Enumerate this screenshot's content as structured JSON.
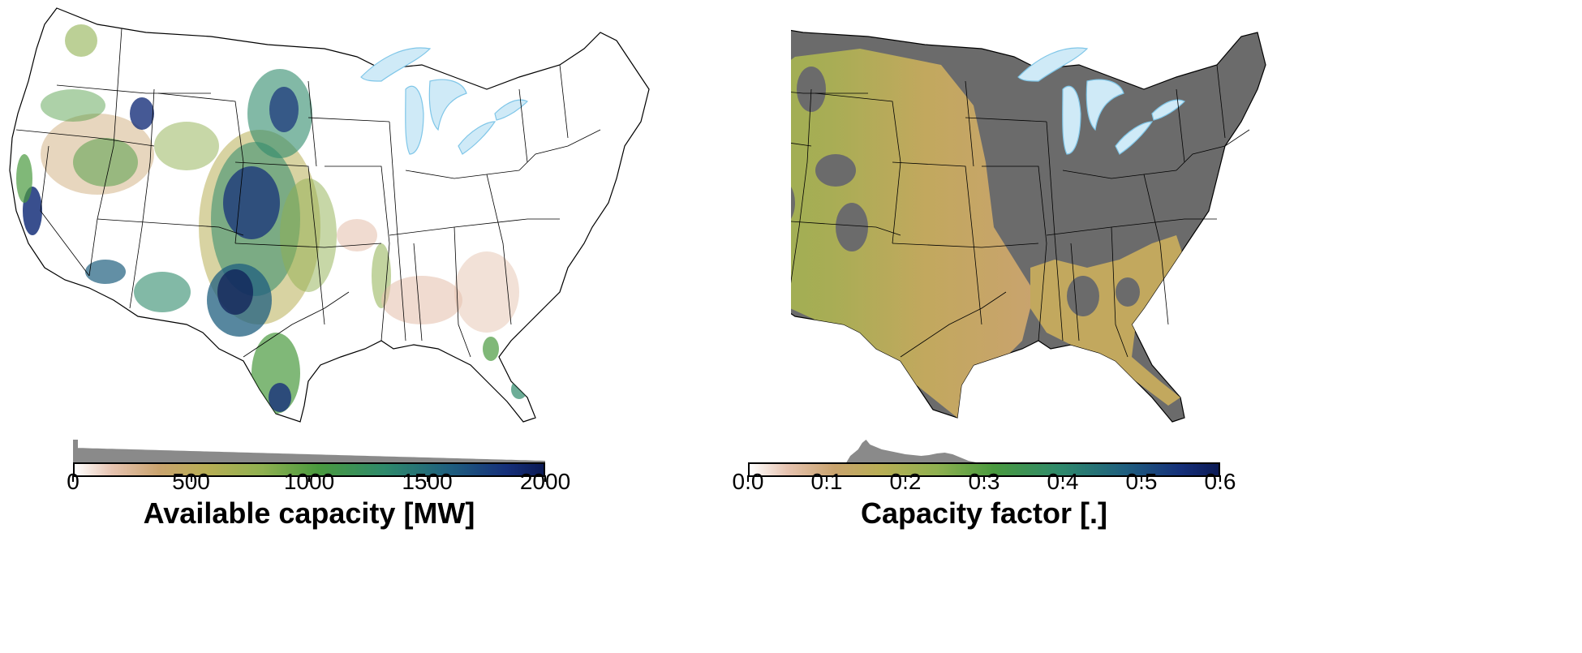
{
  "panels": [
    {
      "id": "available-capacity",
      "colorbar": {
        "title": "Available capacity [MW]",
        "ticks": [
          "0",
          "500",
          "1000",
          "1500",
          "2000"
        ],
        "range": [
          0,
          2000
        ]
      }
    },
    {
      "id": "capacity-factor",
      "colorbar": {
        "title": "Capacity factor [.]",
        "ticks": [
          "0.0",
          "0.1",
          "0.2",
          "0.3",
          "0.4",
          "0.5",
          "0.6"
        ],
        "range": [
          0.0,
          0.6
        ]
      }
    }
  ],
  "colors": {
    "land_excluded": "#6b6b6b",
    "lakes": "#cfeaf7",
    "lake_edge": "#7fc6e8",
    "borders": "#000000",
    "histogram": "#8a8a8a"
  }
}
